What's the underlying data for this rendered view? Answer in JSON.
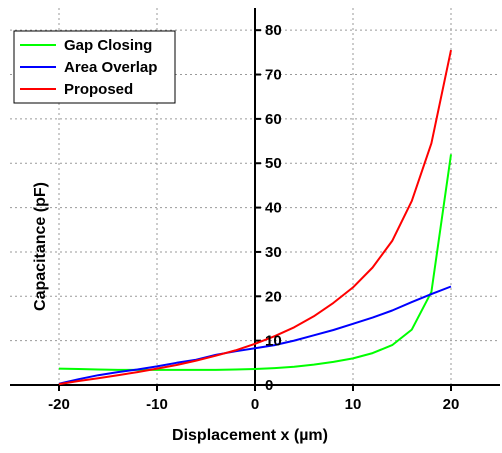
{
  "chart_data": {
    "type": "line",
    "title": "",
    "xlabel": "Displacement x (µm)",
    "ylabel": "Capacitance (pF)",
    "xlim": [
      -25,
      25
    ],
    "ylim": [
      0,
      85
    ],
    "xticks": [
      -20,
      -10,
      0,
      10,
      20
    ],
    "yticks": [
      0,
      10,
      20,
      30,
      40,
      50,
      60,
      70,
      80
    ],
    "grid": true,
    "legend_position": "top-left",
    "series": [
      {
        "name": "Gap Closing",
        "color": "#00ff00",
        "x": [
          -20,
          -18,
          -16,
          -14,
          -12,
          -10,
          -8,
          -6,
          -4,
          -2,
          0,
          2,
          4,
          6,
          8,
          10,
          12,
          14,
          16,
          18,
          20
        ],
        "y": [
          3.7,
          3.6,
          3.5,
          3.4,
          3.4,
          3.4,
          3.4,
          3.4,
          3.4,
          3.5,
          3.6,
          3.8,
          4.1,
          4.6,
          5.2,
          6.0,
          7.2,
          9.0,
          12.5,
          21.0,
          52.0
        ]
      },
      {
        "name": "Area Overlap",
        "color": "#0000ff",
        "x": [
          -20,
          -18,
          -16,
          -14,
          -12,
          -10,
          -8,
          -6,
          -4,
          -2,
          0,
          2,
          4,
          6,
          8,
          10,
          12,
          14,
          16,
          18,
          20
        ],
        "y": [
          0.3,
          1.3,
          2.2,
          2.9,
          3.5,
          4.2,
          5.0,
          5.7,
          6.8,
          7.6,
          8.3,
          9.0,
          10.0,
          11.2,
          12.4,
          13.8,
          15.2,
          16.8,
          18.7,
          20.5,
          22.2
        ]
      },
      {
        "name": "Proposed",
        "color": "#ff0000",
        "x": [
          -20,
          -18,
          -16,
          -14,
          -12,
          -10,
          -8,
          -6,
          -4,
          -2,
          0,
          2,
          4,
          6,
          8,
          10,
          12,
          14,
          16,
          18,
          20
        ],
        "y": [
          0.2,
          0.9,
          1.5,
          2.2,
          2.9,
          3.7,
          4.5,
          5.5,
          6.6,
          7.8,
          9.3,
          11.0,
          13.0,
          15.5,
          18.5,
          22.0,
          26.5,
          32.5,
          41.5,
          54.5,
          75.5
        ]
      }
    ]
  }
}
